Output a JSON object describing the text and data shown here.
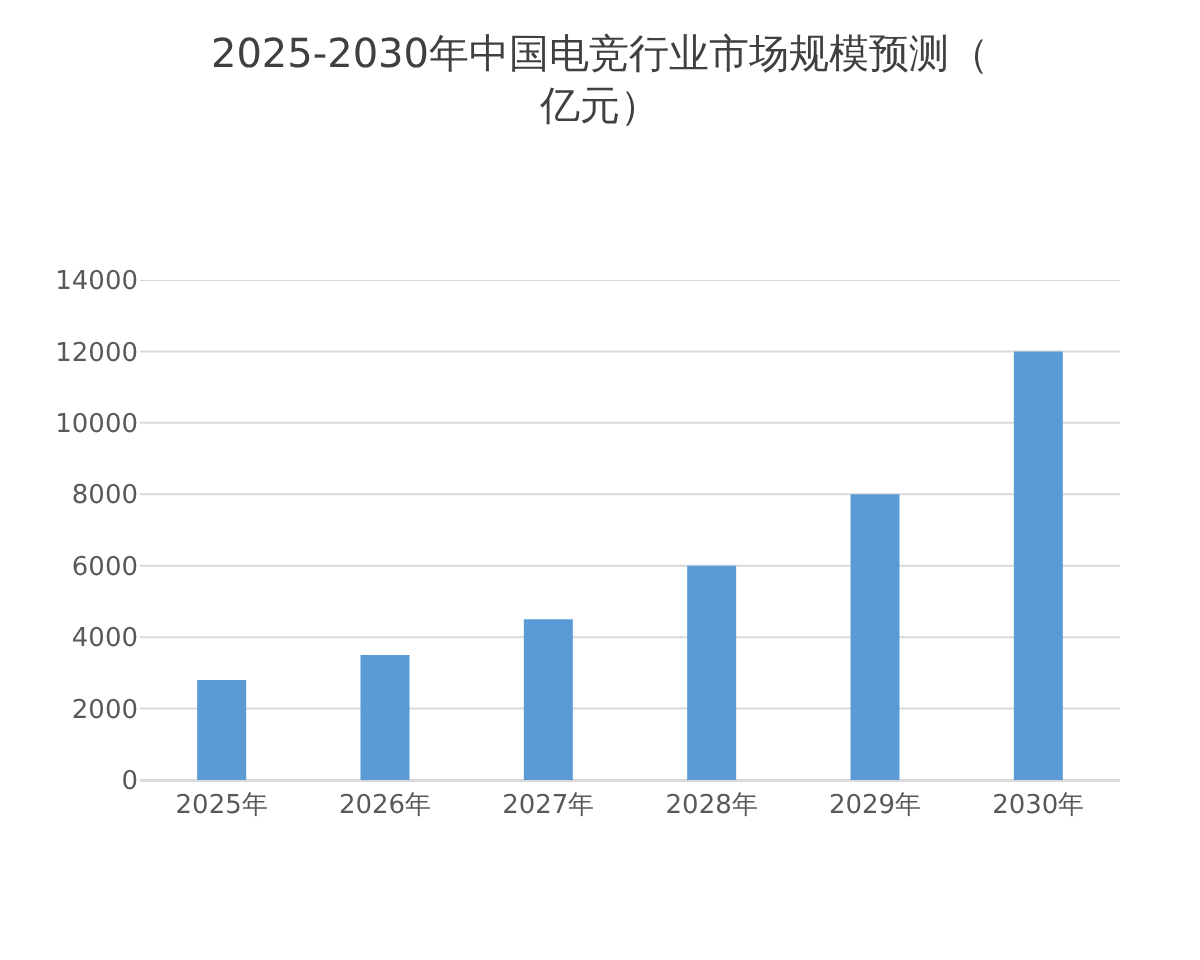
{
  "chart_data": {
    "type": "bar",
    "title": "2025-2030年中国电竞行业市场规模预测（亿元）",
    "categories": [
      "2025年",
      "2026年",
      "2027年",
      "2028年",
      "2029年",
      "2030年"
    ],
    "values": [
      2800,
      3500,
      4500,
      6000,
      8000,
      12000
    ],
    "color": "#5b9bd5",
    "ylim": [
      0,
      14000
    ],
    "yticks": [
      0,
      2000,
      4000,
      6000,
      8000,
      10000,
      12000,
      14000
    ],
    "grid": "y"
  }
}
